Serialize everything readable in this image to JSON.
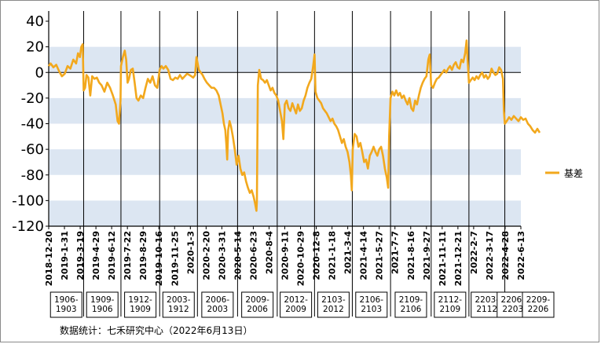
{
  "footer_text": "数据统计：七禾研究中心（2022年6月13日）",
  "colors": {
    "line": "#f2a81d",
    "band": "#dce6f2",
    "axis": "#000000",
    "box_border": "#000000"
  },
  "chart_data": {
    "type": "line",
    "title": "",
    "xlabel": "",
    "ylabel": "",
    "ylim": [
      -120,
      40
    ],
    "yticks": [
      40,
      20,
      0,
      -20,
      -40,
      -60,
      -80,
      -100,
      -120
    ],
    "bands": [
      [
        0,
        20
      ],
      [
        -40,
        -20
      ],
      [
        -80,
        -60
      ],
      [
        -120,
        -100
      ]
    ],
    "legend": {
      "position": "right",
      "entries": [
        "基差"
      ]
    },
    "x_tick_labels": [
      "2018-12-20",
      "2019-1-31",
      "2019-3-19",
      "2019-4-29",
      "2019-6-12",
      "2019-7-22",
      "2019-8-29",
      "2019-10-16",
      "2019-11-25",
      "2020-1-3",
      "2020-2-20",
      "2020-3-31",
      "2020-5-14",
      "2020-6-23",
      "2020-8-4",
      "2020-9-11",
      "2020-10-29",
      "2020-12-8",
      "2021-1-18",
      "2021-3-4",
      "2021-4-14",
      "2021-5-27",
      "2021-7-7",
      "2021-8-16",
      "2021-9-27",
      "2021-11-11",
      "2021-12-21",
      "2022-2-7",
      "2022-3-17",
      "2022-4-28",
      "2022-6-13"
    ],
    "contract_periods": [
      {
        "label": "1906-\n1903",
        "start": 0.0,
        "end": 0.074
      },
      {
        "label": "1909-\n1906",
        "start": 0.074,
        "end": 0.153
      },
      {
        "label": "1912-\n1909",
        "start": 0.153,
        "end": 0.235
      },
      {
        "label": "2003-\n1912",
        "start": 0.235,
        "end": 0.315
      },
      {
        "label": "2006-\n2003",
        "start": 0.315,
        "end": 0.4
      },
      {
        "label": "2009-\n2006",
        "start": 0.4,
        "end": 0.484
      },
      {
        "label": "2012-\n2009",
        "start": 0.484,
        "end": 0.563
      },
      {
        "label": "2103-\n2012",
        "start": 0.563,
        "end": 0.643
      },
      {
        "label": "2106-\n2103",
        "start": 0.643,
        "end": 0.724
      },
      {
        "label": "2109-\n2106",
        "start": 0.724,
        "end": 0.81
      },
      {
        "label": "2112-\n2109",
        "start": 0.81,
        "end": 0.89
      },
      {
        "label": "2203-\n2112",
        "start": 0.89,
        "end": 0.966
      },
      {
        "label": "2206-\n2203",
        "start": 0.966,
        "end": 1.0
      },
      {
        "label": "2209-\n2206",
        "start": 1.0,
        "end": 1.0
      }
    ],
    "series": [
      {
        "name": "基差",
        "points": [
          [
            0.0,
            5
          ],
          [
            0.004,
            7
          ],
          [
            0.01,
            4
          ],
          [
            0.016,
            6
          ],
          [
            0.022,
            1
          ],
          [
            0.028,
            -3
          ],
          [
            0.034,
            -1
          ],
          [
            0.04,
            5
          ],
          [
            0.046,
            3
          ],
          [
            0.052,
            10
          ],
          [
            0.058,
            7
          ],
          [
            0.062,
            15
          ],
          [
            0.066,
            12
          ],
          [
            0.069,
            20
          ],
          [
            0.072,
            22
          ],
          [
            0.074,
            -14
          ],
          [
            0.077,
            -12
          ],
          [
            0.08,
            -2
          ],
          [
            0.084,
            -4
          ],
          [
            0.088,
            -18
          ],
          [
            0.092,
            -3
          ],
          [
            0.097,
            -5
          ],
          [
            0.102,
            -4
          ],
          [
            0.107,
            -8
          ],
          [
            0.112,
            -10
          ],
          [
            0.118,
            -15
          ],
          [
            0.124,
            -8
          ],
          [
            0.13,
            -12
          ],
          [
            0.136,
            -18
          ],
          [
            0.142,
            -25
          ],
          [
            0.146,
            -38
          ],
          [
            0.149,
            -40
          ],
          [
            0.152,
            -22
          ],
          [
            0.153,
            5
          ],
          [
            0.157,
            12
          ],
          [
            0.161,
            17
          ],
          [
            0.164,
            10
          ],
          [
            0.167,
            -8
          ],
          [
            0.17,
            -5
          ],
          [
            0.174,
            2
          ],
          [
            0.178,
            3
          ],
          [
            0.182,
            -8
          ],
          [
            0.186,
            -20
          ],
          [
            0.19,
            -22
          ],
          [
            0.195,
            -18
          ],
          [
            0.2,
            -20
          ],
          [
            0.205,
            -12
          ],
          [
            0.21,
            -5
          ],
          [
            0.215,
            -8
          ],
          [
            0.22,
            -3
          ],
          [
            0.225,
            -10
          ],
          [
            0.23,
            -12
          ],
          [
            0.235,
            2
          ],
          [
            0.239,
            5
          ],
          [
            0.243,
            3
          ],
          [
            0.248,
            5
          ],
          [
            0.253,
            2
          ],
          [
            0.258,
            -5
          ],
          [
            0.263,
            -6
          ],
          [
            0.268,
            -4
          ],
          [
            0.273,
            -5
          ],
          [
            0.278,
            -2
          ],
          [
            0.283,
            -5
          ],
          [
            0.288,
            -3
          ],
          [
            0.293,
            -1
          ],
          [
            0.298,
            -2
          ],
          [
            0.302,
            -3
          ],
          [
            0.306,
            -4
          ],
          [
            0.31,
            -2
          ],
          [
            0.313,
            12
          ],
          [
            0.315,
            8
          ],
          [
            0.318,
            2
          ],
          [
            0.322,
            0
          ],
          [
            0.326,
            -2
          ],
          [
            0.33,
            -5
          ],
          [
            0.335,
            -8
          ],
          [
            0.34,
            -10
          ],
          [
            0.345,
            -12
          ],
          [
            0.35,
            -12
          ],
          [
            0.355,
            -14
          ],
          [
            0.36,
            -18
          ],
          [
            0.364,
            -25
          ],
          [
            0.368,
            -32
          ],
          [
            0.371,
            -40
          ],
          [
            0.374,
            -45
          ],
          [
            0.376,
            -55
          ],
          [
            0.378,
            -68
          ],
          [
            0.38,
            -45
          ],
          [
            0.383,
            -38
          ],
          [
            0.386,
            -42
          ],
          [
            0.39,
            -50
          ],
          [
            0.394,
            -60
          ],
          [
            0.398,
            -72
          ],
          [
            0.402,
            -65
          ],
          [
            0.406,
            -75
          ],
          [
            0.41,
            -80
          ],
          [
            0.414,
            -78
          ],
          [
            0.418,
            -85
          ],
          [
            0.422,
            -90
          ],
          [
            0.426,
            -94
          ],
          [
            0.43,
            -92
          ],
          [
            0.434,
            -97
          ],
          [
            0.437,
            -102
          ],
          [
            0.44,
            -108
          ],
          [
            0.441,
            -100
          ],
          [
            0.443,
            -10
          ],
          [
            0.446,
            2
          ],
          [
            0.45,
            -5
          ],
          [
            0.454,
            -6
          ],
          [
            0.458,
            -8
          ],
          [
            0.462,
            -6
          ],
          [
            0.466,
            -10
          ],
          [
            0.47,
            -14
          ],
          [
            0.474,
            -12
          ],
          [
            0.478,
            -16
          ],
          [
            0.482,
            -18
          ],
          [
            0.486,
            -22
          ],
          [
            0.49,
            -30
          ],
          [
            0.494,
            -38
          ],
          [
            0.497,
            -52
          ],
          [
            0.5,
            -25
          ],
          [
            0.504,
            -22
          ],
          [
            0.508,
            -28
          ],
          [
            0.512,
            -30
          ],
          [
            0.516,
            -24
          ],
          [
            0.52,
            -28
          ],
          [
            0.524,
            -32
          ],
          [
            0.528,
            -25
          ],
          [
            0.532,
            -30
          ],
          [
            0.536,
            -28
          ],
          [
            0.54,
            -22
          ],
          [
            0.544,
            -18
          ],
          [
            0.548,
            -12
          ],
          [
            0.552,
            -8
          ],
          [
            0.556,
            -5
          ],
          [
            0.56,
            5
          ],
          [
            0.563,
            14
          ],
          [
            0.565,
            -15
          ],
          [
            0.569,
            -20
          ],
          [
            0.573,
            -22
          ],
          [
            0.577,
            -24
          ],
          [
            0.581,
            -28
          ],
          [
            0.585,
            -30
          ],
          [
            0.589,
            -32
          ],
          [
            0.593,
            -35
          ],
          [
            0.597,
            -38
          ],
          [
            0.601,
            -36
          ],
          [
            0.605,
            -40
          ],
          [
            0.609,
            -42
          ],
          [
            0.613,
            -45
          ],
          [
            0.617,
            -50
          ],
          [
            0.621,
            -55
          ],
          [
            0.625,
            -52
          ],
          [
            0.629,
            -58
          ],
          [
            0.633,
            -62
          ],
          [
            0.637,
            -70
          ],
          [
            0.64,
            -80
          ],
          [
            0.642,
            -92
          ],
          [
            0.644,
            -60
          ],
          [
            0.648,
            -48
          ],
          [
            0.652,
            -50
          ],
          [
            0.656,
            -58
          ],
          [
            0.66,
            -55
          ],
          [
            0.664,
            -62
          ],
          [
            0.668,
            -70
          ],
          [
            0.672,
            -68
          ],
          [
            0.676,
            -75
          ],
          [
            0.68,
            -65
          ],
          [
            0.684,
            -62
          ],
          [
            0.688,
            -58
          ],
          [
            0.692,
            -62
          ],
          [
            0.696,
            -65
          ],
          [
            0.7,
            -60
          ],
          [
            0.704,
            -58
          ],
          [
            0.708,
            -65
          ],
          [
            0.712,
            -75
          ],
          [
            0.716,
            -82
          ],
          [
            0.719,
            -90
          ],
          [
            0.721,
            -50
          ],
          [
            0.724,
            -20
          ],
          [
            0.728,
            -15
          ],
          [
            0.732,
            -18
          ],
          [
            0.736,
            -14
          ],
          [
            0.74,
            -18
          ],
          [
            0.744,
            -16
          ],
          [
            0.748,
            -20
          ],
          [
            0.752,
            -18
          ],
          [
            0.756,
            -22
          ],
          [
            0.76,
            -25
          ],
          [
            0.764,
            -20
          ],
          [
            0.768,
            -28
          ],
          [
            0.772,
            -30
          ],
          [
            0.776,
            -22
          ],
          [
            0.78,
            -25
          ],
          [
            0.784,
            -18
          ],
          [
            0.788,
            -12
          ],
          [
            0.792,
            -8
          ],
          [
            0.796,
            -5
          ],
          [
            0.8,
            -3
          ],
          [
            0.804,
            10
          ],
          [
            0.807,
            14
          ],
          [
            0.81,
            -10
          ],
          [
            0.814,
            -12
          ],
          [
            0.818,
            -8
          ],
          [
            0.822,
            -5
          ],
          [
            0.826,
            -4
          ],
          [
            0.83,
            -2
          ],
          [
            0.834,
            0
          ],
          [
            0.838,
            2
          ],
          [
            0.842,
            0
          ],
          [
            0.846,
            3
          ],
          [
            0.85,
            5
          ],
          [
            0.854,
            2
          ],
          [
            0.858,
            6
          ],
          [
            0.862,
            8
          ],
          [
            0.866,
            4
          ],
          [
            0.87,
            3
          ],
          [
            0.874,
            10
          ],
          [
            0.878,
            8
          ],
          [
            0.882,
            15
          ],
          [
            0.885,
            25
          ],
          [
            0.888,
            5
          ],
          [
            0.89,
            -8
          ],
          [
            0.894,
            -6
          ],
          [
            0.898,
            -4
          ],
          [
            0.902,
            -6
          ],
          [
            0.906,
            -3
          ],
          [
            0.91,
            -5
          ],
          [
            0.914,
            -2
          ],
          [
            0.918,
            0
          ],
          [
            0.922,
            -4
          ],
          [
            0.926,
            -2
          ],
          [
            0.93,
            -5
          ],
          [
            0.934,
            -3
          ],
          [
            0.938,
            3
          ],
          [
            0.942,
            0
          ],
          [
            0.946,
            -2
          ],
          [
            0.95,
            -1
          ],
          [
            0.954,
            4
          ],
          [
            0.958,
            2
          ],
          [
            0.962,
            -5
          ],
          [
            0.964,
            -30
          ],
          [
            0.966,
            -40
          ],
          [
            0.97,
            -38
          ],
          [
            0.975,
            -35
          ],
          [
            0.98,
            -37
          ],
          [
            0.985,
            -34
          ],
          [
            0.99,
            -36
          ],
          [
            0.995,
            -38
          ],
          [
            1.0,
            -35
          ],
          [
            1.005,
            -37
          ],
          [
            1.01,
            -36
          ],
          [
            1.015,
            -40
          ],
          [
            1.02,
            -42
          ],
          [
            1.025,
            -45
          ],
          [
            1.03,
            -47
          ],
          [
            1.035,
            -44
          ],
          [
            1.04,
            -47
          ]
        ]
      }
    ]
  }
}
